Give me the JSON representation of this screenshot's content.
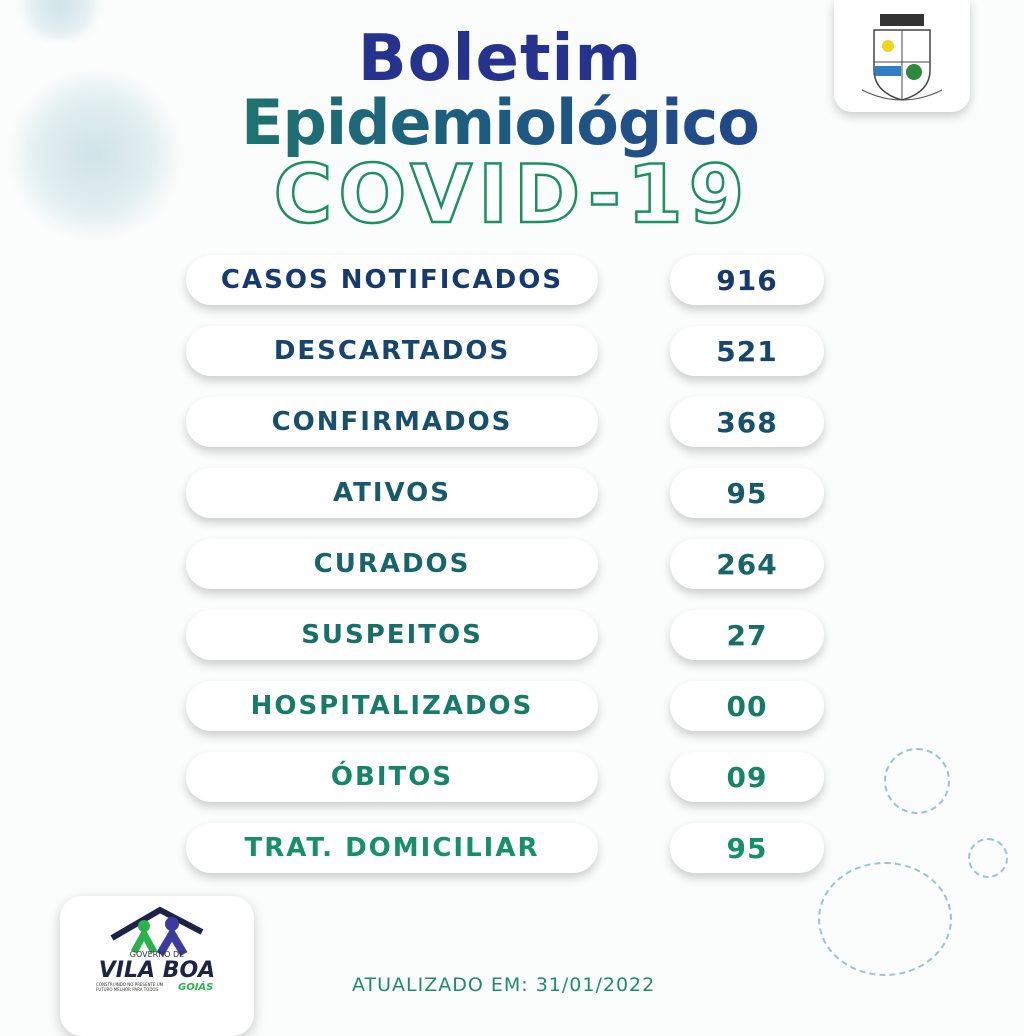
{
  "header": {
    "line1": "Boletim",
    "line2": "Epidemiológico",
    "line3": "COVID-19"
  },
  "colors": {
    "start": "#173a6e",
    "end": "#169066",
    "title_blue": "#25338f",
    "green": "#1b9160"
  },
  "rows": [
    {
      "label": "CASOS NOTIFICADOS",
      "value": "916"
    },
    {
      "label": "DESCARTADOS",
      "value": "521"
    },
    {
      "label": "CONFIRMADOS",
      "value": "368"
    },
    {
      "label": "ATIVOS",
      "value": "95"
    },
    {
      "label": "CURADOS",
      "value": "264"
    },
    {
      "label": "SUSPEITOS",
      "value": "27"
    },
    {
      "label": "HOSPITALIZADOS",
      "value": "00"
    },
    {
      "label": "ÓBITOS",
      "value": "09"
    },
    {
      "label": "TRAT. DOMICILIAR",
      "value": "95"
    }
  ],
  "logo": {
    "top": "GOVERNO DE",
    "name": "VILA BOA",
    "state": "GOIÁS",
    "slogan": "CONSTRUINDO NO PRESENTE UM FUTURO MELHOR PARA TODOS"
  },
  "footer": {
    "updated": "ATUALIZADO EM: 31/01/2022"
  }
}
